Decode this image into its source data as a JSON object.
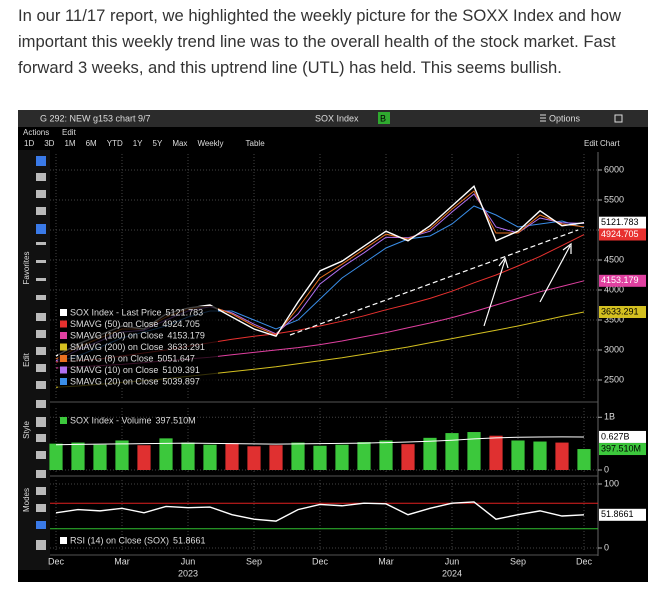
{
  "text": {
    "lines": [
      "In our 11/17 report, we highlighted the weekly picture for the SOXX Index and how",
      "important this weekly trend line was to the overall health of the stock market. Fast",
      "forward 3 weeks, and this uptrend line (UTL) has held. This seems bullish."
    ]
  },
  "terminal": {
    "window_title": "G 292: NEW g153 chart 9/7",
    "security": "SOX Index",
    "security_tag": "B",
    "options": "Options",
    "menu": [
      "Actions",
      "Edit"
    ],
    "periods": [
      "1D",
      "3D",
      "1M",
      "6M",
      "YTD",
      "1Y",
      "5Y",
      "Max",
      "Weekly",
      "Table"
    ],
    "edit_chart": "Edit Chart",
    "sidebar": [
      "Favorites",
      "Edit",
      "Style",
      "Modes"
    ]
  },
  "chart_data": [
    {
      "type": "line",
      "ylim": [
        2250,
        6200
      ],
      "yticks": [
        2500,
        3000,
        3500,
        4000,
        4500,
        5000,
        5500,
        6000
      ],
      "grid": true,
      "series": [
        {
          "name": "SOX Index - Last Price",
          "color": "#ffffff",
          "axis_badge": true,
          "values": [
            2900,
            3100,
            3250,
            3400,
            3350,
            3600,
            3700,
            3750,
            3550,
            3350,
            3230,
            3800,
            4320,
            4480,
            4730,
            4980,
            4820,
            5070,
            5400,
            5730,
            4820,
            4980,
            5320,
            5070,
            5121.783
          ]
        },
        {
          "name": "SMAVG (50)  on Close",
          "color": "#e8312f",
          "axis_badge": true,
          "values": [
            2800,
            2820,
            2850,
            2900,
            2950,
            3000,
            3060,
            3120,
            3180,
            3230,
            3270,
            3330,
            3400,
            3480,
            3570,
            3670,
            3760,
            3860,
            3980,
            4120,
            4250,
            4400,
            4560,
            4740,
            4924.705
          ]
        },
        {
          "name": "SMAVG (100)  on Close",
          "color": "#e040a0",
          "axis_badge": true,
          "values": [
            2700,
            2720,
            2740,
            2760,
            2790,
            2820,
            2850,
            2880,
            2920,
            2960,
            3000,
            3040,
            3090,
            3150,
            3220,
            3290,
            3370,
            3450,
            3540,
            3640,
            3750,
            3860,
            3970,
            4060,
            4153.179
          ]
        },
        {
          "name": "SMAVG (200)  on Close",
          "color": "#d4c020",
          "axis_badge": true,
          "values": [
            2380,
            2400,
            2430,
            2460,
            2490,
            2520,
            2560,
            2600,
            2640,
            2680,
            2720,
            2770,
            2820,
            2870,
            2930,
            2990,
            3050,
            3120,
            3190,
            3260,
            3330,
            3400,
            3480,
            3560,
            3633.291
          ]
        },
        {
          "name": "EMAVG (8)  on Close",
          "color": "#e87020",
          "axis_badge": false,
          "values": [
            2850,
            3050,
            3200,
            3350,
            3350,
            3550,
            3680,
            3740,
            3600,
            3400,
            3250,
            3700,
            4200,
            4430,
            4680,
            4930,
            4850,
            5020,
            5350,
            5650,
            4950,
            4950,
            5250,
            5100,
            5051.647
          ]
        },
        {
          "name": "SMAVG (10)  on Close",
          "color": "#b070f0",
          "axis_badge": false,
          "values": [
            2820,
            3000,
            3150,
            3300,
            3330,
            3500,
            3650,
            3720,
            3620,
            3430,
            3270,
            3600,
            4100,
            4380,
            4620,
            4880,
            4870,
            4980,
            5300,
            5600,
            5050,
            4950,
            5200,
            5120,
            5109.391
          ]
        },
        {
          "name": "SMAVG (20)  on Close",
          "color": "#3a8ee8",
          "axis_badge": false,
          "values": [
            2800,
            2900,
            3050,
            3200,
            3300,
            3400,
            3550,
            3650,
            3650,
            3500,
            3350,
            3500,
            3850,
            4200,
            4450,
            4700,
            4850,
            4900,
            5100,
            5400,
            5250,
            5050,
            5100,
            5150,
            5039.897
          ]
        }
      ]
    },
    {
      "type": "bar",
      "ylim": [
        0,
        1100000000
      ],
      "yticks": [
        0,
        {
          "value": 1000000000,
          "label": "1B"
        }
      ],
      "grid": true,
      "up_color": "#3cc83c",
      "down_color": "#e03030",
      "series": [
        {
          "name": "SOX Index - Volume",
          "color": "#3cc83c",
          "value_label": "397.510M",
          "values": [
            500000000,
            520000000,
            480000000,
            560000000,
            470000000,
            600000000,
            520000000,
            480000000,
            510000000,
            450000000,
            470000000,
            520000000,
            460000000,
            480000000,
            530000000,
            560000000,
            490000000,
            610000000,
            700000000,
            720000000,
            650000000,
            560000000,
            540000000,
            520000000,
            397510000
          ]
        }
      ],
      "average": {
        "color": "#ffffff",
        "value_label": "0.627B",
        "values": [
          480000000,
          485000000,
          490000000,
          495000000,
          500000000,
          505000000,
          510000000,
          505000000,
          500000000,
          495000000,
          490000000,
          495000000,
          500000000,
          505000000,
          510000000,
          520000000,
          530000000,
          545000000,
          565000000,
          590000000,
          610000000,
          620000000,
          625000000,
          628000000,
          627000000
        ]
      }
    },
    {
      "type": "line",
      "ylim": [
        0,
        100
      ],
      "yticks": [
        0,
        100
      ],
      "grid": true,
      "categories": [
        "Dec",
        null,
        null,
        "Mar",
        null,
        null,
        "Jun",
        null,
        null,
        "Sep",
        null,
        null,
        "Dec",
        null,
        null,
        "Mar",
        null,
        null,
        "Jun",
        null,
        null,
        "Sep",
        null,
        null,
        "Dec"
      ],
      "years": [
        "2023",
        "2024"
      ],
      "levels": [
        {
          "value": 70,
          "color": "#e02020"
        },
        {
          "value": 30,
          "color": "#30c030"
        }
      ],
      "series": [
        {
          "name": "RSI (14)  on Close (SOX)",
          "color": "#ffffff",
          "axis_badge": true,
          "values": [
            55,
            60,
            58,
            62,
            55,
            65,
            63,
            64,
            52,
            45,
            42,
            60,
            68,
            66,
            70,
            69,
            52,
            62,
            70,
            72,
            45,
            52,
            58,
            50,
            51.8661
          ]
        }
      ]
    }
  ]
}
